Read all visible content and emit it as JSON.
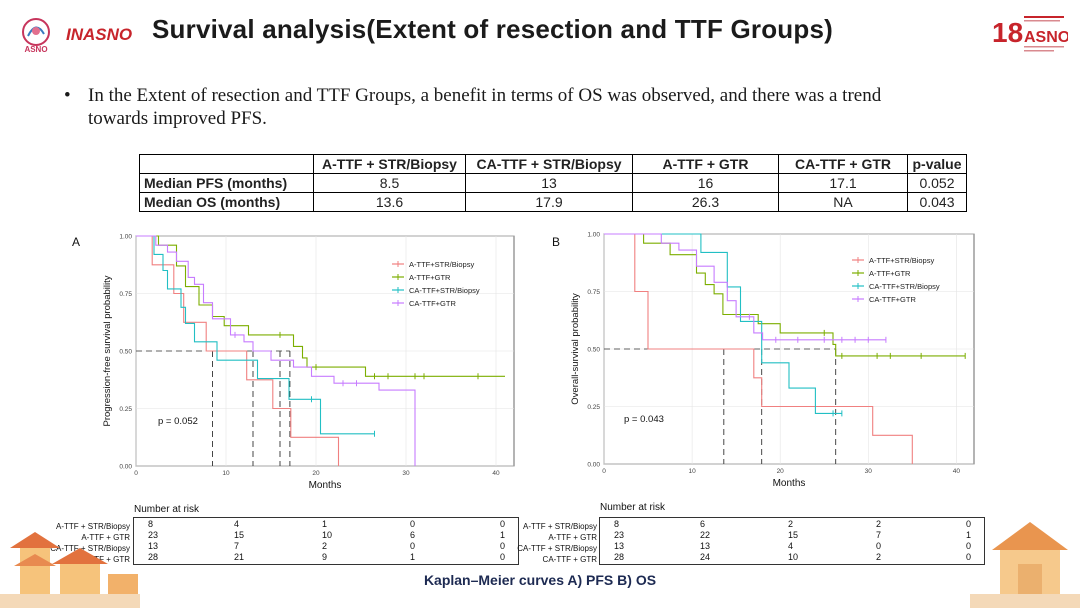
{
  "slide": {
    "title": "Survival analysis(Extent of resection and TTF Groups)",
    "logos": {
      "asno": "ASNO",
      "inasno": "INASNO",
      "congress_number": "18",
      "congress_name": "ASNO"
    },
    "bullet_marker": "•",
    "bullet_text": "In the Extent of resection and TTF Groups, a benefit in terms of OS was observed, and there was a trend towards improved PFS.",
    "caption": "Kaplan–Meier curves A) PFS B)  OS"
  },
  "summary_table": {
    "headers": [
      "",
      "A-TTF + STR/Biopsy",
      "CA-TTF + STR/Biopsy",
      "A-TTF + GTR",
      "CA-TTF + GTR",
      "p-value"
    ],
    "rows": [
      {
        "label": "Median PFS (months)",
        "values": [
          "8.5",
          "13",
          "16",
          "17.1",
          "0.052"
        ]
      },
      {
        "label": "Median OS (months)",
        "values": [
          "13.6",
          "17.9",
          "26.3",
          "NA",
          "0.043"
        ]
      }
    ]
  },
  "colors": {
    "a_ttf_str": "#f08080",
    "a_ttf_gtr": "#7cae00",
    "ca_ttf_str": "#22bfc4",
    "ca_ttf_gtr": "#c77cff"
  },
  "chart_data": [
    {
      "type": "line",
      "panel": "A",
      "ylabel": "Progression-free survival probability",
      "xlabel": "Months",
      "xlim": [
        0,
        42
      ],
      "ylim": [
        0,
        1
      ],
      "x_ticks": [
        "0",
        "10",
        "20",
        "30",
        "40"
      ],
      "x_tick_values": [
        0,
        10,
        20,
        30,
        40
      ],
      "y_ticks": [
        "0.00",
        "0.25",
        "0.50",
        "0.75",
        "1.00"
      ],
      "y_tick_values": [
        0,
        0.25,
        0.5,
        0.75,
        1
      ],
      "pvalue_label": "p = 0.052",
      "medians": [
        8.5,
        13,
        16,
        17.1
      ],
      "series": [
        {
          "name": "A-TTF+STR/Biopsy",
          "color_key": "a_ttf_str",
          "points": [
            [
              0,
              1
            ],
            [
              1.8,
              1
            ],
            [
              1.8,
              0.875
            ],
            [
              4.2,
              0.875
            ],
            [
              4.2,
              0.75
            ],
            [
              5.3,
              0.75
            ],
            [
              5.3,
              0.625
            ],
            [
              7.8,
              0.625
            ],
            [
              7.8,
              0.5
            ],
            [
              12.3,
              0.5
            ],
            [
              12.3,
              0.375
            ],
            [
              15.2,
              0.375
            ],
            [
              15.2,
              0.25
            ],
            [
              17.2,
              0.25
            ],
            [
              17.2,
              0.125
            ],
            [
              22.5,
              0.125
            ],
            [
              22.5,
              0
            ]
          ],
          "censored": []
        },
        {
          "name": "A-TTF+GTR",
          "color_key": "a_ttf_gtr",
          "points": [
            [
              0,
              1
            ],
            [
              2.5,
              1
            ],
            [
              2.5,
              0.96
            ],
            [
              4.5,
              0.96
            ],
            [
              4.5,
              0.87
            ],
            [
              5.5,
              0.87
            ],
            [
              5.5,
              0.78
            ],
            [
              7,
              0.78
            ],
            [
              7,
              0.7
            ],
            [
              8.5,
              0.7
            ],
            [
              8.5,
              0.65
            ],
            [
              9.8,
              0.65
            ],
            [
              9.8,
              0.61
            ],
            [
              12.5,
              0.61
            ],
            [
              12.5,
              0.57
            ],
            [
              17.5,
              0.57
            ],
            [
              17.5,
              0.52
            ],
            [
              18.5,
              0.52
            ],
            [
              18.5,
              0.47
            ],
            [
              19,
              0.47
            ],
            [
              19,
              0.43
            ],
            [
              25.5,
              0.43
            ],
            [
              25.5,
              0.39
            ],
            [
              41,
              0.39
            ]
          ],
          "censored": [
            [
              16,
              0.57
            ],
            [
              20,
              0.43
            ],
            [
              26.5,
              0.39
            ],
            [
              28,
              0.39
            ],
            [
              31,
              0.39
            ],
            [
              32,
              0.39
            ],
            [
              38,
              0.39
            ]
          ]
        },
        {
          "name": "CA-TTF+STR/Biopsy",
          "color_key": "ca_ttf_str",
          "points": [
            [
              0,
              1
            ],
            [
              2,
              1
            ],
            [
              2,
              0.92
            ],
            [
              3,
              0.92
            ],
            [
              3,
              0.85
            ],
            [
              3.5,
              0.85
            ],
            [
              3.5,
              0.77
            ],
            [
              5,
              0.77
            ],
            [
              5,
              0.69
            ],
            [
              5.5,
              0.69
            ],
            [
              5.5,
              0.62
            ],
            [
              6.5,
              0.62
            ],
            [
              6.5,
              0.54
            ],
            [
              9,
              0.54
            ],
            [
              9,
              0.46
            ],
            [
              13.5,
              0.46
            ],
            [
              13.5,
              0.38
            ],
            [
              17,
              0.38
            ],
            [
              17,
              0.29
            ],
            [
              20.5,
              0.29
            ],
            [
              20.5,
              0.14
            ],
            [
              26.5,
              0.14
            ]
          ],
          "censored": [
            [
              19.5,
              0.29
            ],
            [
              26.5,
              0.14
            ]
          ]
        },
        {
          "name": "CA-TTF+GTR",
          "color_key": "ca_ttf_gtr",
          "points": [
            [
              0,
              1
            ],
            [
              2.2,
              1
            ],
            [
              2.2,
              0.96
            ],
            [
              3.5,
              0.96
            ],
            [
              3.5,
              0.93
            ],
            [
              4.5,
              0.93
            ],
            [
              4.5,
              0.89
            ],
            [
              5.8,
              0.89
            ],
            [
              5.8,
              0.82
            ],
            [
              6.5,
              0.82
            ],
            [
              6.5,
              0.79
            ],
            [
              7.5,
              0.79
            ],
            [
              7.5,
              0.71
            ],
            [
              8.5,
              0.71
            ],
            [
              8.5,
              0.64
            ],
            [
              10.5,
              0.64
            ],
            [
              10.5,
              0.57
            ],
            [
              12,
              0.57
            ],
            [
              12,
              0.54
            ],
            [
              13,
              0.54
            ],
            [
              13,
              0.5
            ],
            [
              15,
              0.5
            ],
            [
              15,
              0.46
            ],
            [
              17.5,
              0.46
            ],
            [
              17.5,
              0.43
            ],
            [
              19.5,
              0.43
            ],
            [
              19.5,
              0.39
            ],
            [
              22,
              0.39
            ],
            [
              22,
              0.36
            ],
            [
              27,
              0.36
            ],
            [
              27,
              0.33
            ],
            [
              31,
              0.33
            ],
            [
              31,
              0
            ]
          ],
          "censored": [
            [
              11,
              0.57
            ],
            [
              23,
              0.36
            ],
            [
              24.5,
              0.36
            ]
          ]
        }
      ]
    },
    {
      "type": "line",
      "panel": "B",
      "ylabel": "Overall-survival probability",
      "xlabel": "Months",
      "xlim": [
        0,
        42
      ],
      "ylim": [
        0,
        1
      ],
      "x_ticks": [
        "0",
        "10",
        "20",
        "30",
        "40"
      ],
      "x_tick_values": [
        0,
        10,
        20,
        30,
        40
      ],
      "y_ticks": [
        "0.00",
        "0.25",
        "0.50",
        "0.75",
        "1.00"
      ],
      "y_tick_values": [
        0,
        0.25,
        0.5,
        0.75,
        1
      ],
      "pvalue_label": "p = 0.043",
      "medians": [
        13.6,
        17.9,
        26.3
      ],
      "series": [
        {
          "name": "A-TTF+STR/Biopsy",
          "color_key": "a_ttf_str",
          "points": [
            [
              0,
              1
            ],
            [
              3.5,
              1
            ],
            [
              3.5,
              0.75
            ],
            [
              5,
              0.75
            ],
            [
              5,
              0.5
            ],
            [
              17,
              0.5
            ],
            [
              17,
              0.375
            ],
            [
              17.9,
              0.375
            ],
            [
              17.9,
              0.25
            ],
            [
              30.5,
              0.25
            ],
            [
              30.5,
              0.125
            ],
            [
              35,
              0.125
            ],
            [
              35,
              0
            ]
          ],
          "censored": []
        },
        {
          "name": "A-TTF+GTR",
          "color_key": "a_ttf_gtr",
          "points": [
            [
              0,
              1
            ],
            [
              4.5,
              1
            ],
            [
              4.5,
              0.96
            ],
            [
              7.5,
              0.96
            ],
            [
              7.5,
              0.91
            ],
            [
              10.5,
              0.91
            ],
            [
              10.5,
              0.83
            ],
            [
              11.5,
              0.83
            ],
            [
              11.5,
              0.78
            ],
            [
              12.5,
              0.78
            ],
            [
              12.5,
              0.74
            ],
            [
              13.5,
              0.74
            ],
            [
              13.5,
              0.65
            ],
            [
              17.5,
              0.65
            ],
            [
              17.5,
              0.61
            ],
            [
              20,
              0.61
            ],
            [
              20,
              0.57
            ],
            [
              26,
              0.57
            ],
            [
              26,
              0.52
            ],
            [
              26.3,
              0.52
            ],
            [
              26.3,
              0.47
            ],
            [
              41,
              0.47
            ]
          ],
          "censored": [
            [
              25,
              0.57
            ],
            [
              27,
              0.47
            ],
            [
              31,
              0.47
            ],
            [
              32.5,
              0.47
            ],
            [
              36,
              0.47
            ],
            [
              41,
              0.47
            ]
          ]
        },
        {
          "name": "CA-TTF+STR/Biopsy",
          "color_key": "ca_ttf_str",
          "points": [
            [
              0,
              1
            ],
            [
              11,
              1
            ],
            [
              11,
              0.92
            ],
            [
              14,
              0.92
            ],
            [
              14,
              0.77
            ],
            [
              15.5,
              0.77
            ],
            [
              15.5,
              0.62
            ],
            [
              17.9,
              0.62
            ],
            [
              17.9,
              0.44
            ],
            [
              21,
              0.44
            ],
            [
              21,
              0.33
            ],
            [
              24,
              0.33
            ],
            [
              24,
              0.22
            ],
            [
              26,
              0.22
            ],
            [
              26,
              0.22
            ],
            [
              27,
              0.22
            ]
          ],
          "censored": [
            [
              26,
              0.22
            ],
            [
              27,
              0.22
            ]
          ]
        },
        {
          "name": "CA-TTF+GTR",
          "color_key": "ca_ttf_gtr",
          "points": [
            [
              0,
              1
            ],
            [
              6.5,
              1
            ],
            [
              6.5,
              0.96
            ],
            [
              8.5,
              0.96
            ],
            [
              8.5,
              0.93
            ],
            [
              10.5,
              0.93
            ],
            [
              10.5,
              0.86
            ],
            [
              12.5,
              0.86
            ],
            [
              12.5,
              0.79
            ],
            [
              14,
              0.79
            ],
            [
              14,
              0.71
            ],
            [
              15,
              0.71
            ],
            [
              15,
              0.64
            ],
            [
              17,
              0.64
            ],
            [
              17,
              0.57
            ],
            [
              18,
              0.57
            ],
            [
              18,
              0.54
            ],
            [
              32,
              0.54
            ]
          ],
          "censored": [
            [
              16.5,
              0.64
            ],
            [
              19.5,
              0.54
            ],
            [
              22,
              0.54
            ],
            [
              25,
              0.54
            ],
            [
              27,
              0.54
            ],
            [
              28.5,
              0.54
            ],
            [
              30,
              0.54
            ],
            [
              32,
              0.54
            ]
          ]
        }
      ]
    }
  ],
  "risk_tables": [
    {
      "title": "Number at risk",
      "labels": [
        "A-TTF + STR/Biopsy",
        "A-TTF + GTR",
        "CA-TTF + STR/Biopsy",
        "CA-TTF + GTR"
      ],
      "rows": [
        [
          "8",
          "4",
          "1",
          "0",
          "0"
        ],
        [
          "23",
          "15",
          "10",
          "6",
          "1"
        ],
        [
          "13",
          "7",
          "2",
          "0",
          "0"
        ],
        [
          "28",
          "21",
          "9",
          "1",
          "0"
        ]
      ]
    },
    {
      "title": "Number at risk",
      "labels": [
        "A-TTF + STR/Biopsy",
        "A-TTF + GTR",
        "CA-TTF + STR/Biopsy",
        "CA-TTF + GTR"
      ],
      "rows": [
        [
          "8",
          "6",
          "2",
          "2",
          "0"
        ],
        [
          "23",
          "22",
          "15",
          "7",
          "1"
        ],
        [
          "13",
          "13",
          "4",
          "0",
          "0"
        ],
        [
          "28",
          "24",
          "10",
          "2",
          "0"
        ]
      ]
    }
  ]
}
